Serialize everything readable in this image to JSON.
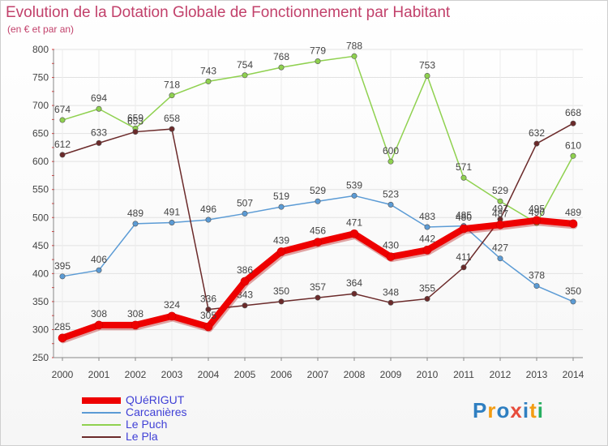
{
  "chart_data": {
    "type": "line",
    "title": "Evolution de la Dotation Globale de Fonctionnement par Habitant",
    "subtitle": "(en € et par an)",
    "xlabel": "",
    "ylabel": "",
    "ylim": [
      250,
      800
    ],
    "yticks": [
      250,
      300,
      350,
      400,
      450,
      500,
      550,
      600,
      650,
      700,
      750,
      800
    ],
    "categories": [
      "2000",
      "2001",
      "2002",
      "2003",
      "2004",
      "2005",
      "2006",
      "2007",
      "2008",
      "2009",
      "2010",
      "2011",
      "2012",
      "2013",
      "2014"
    ],
    "legend_position": "bottom-left",
    "series": [
      {
        "name": "QUéRIGUT",
        "color": "#ee0000",
        "emphasis": true,
        "values": [
          285,
          308,
          308,
          324,
          305,
          386,
          439,
          456,
          471,
          430,
          442,
          480,
          487,
          495,
          489
        ]
      },
      {
        "name": "Carcanières",
        "color": "#5b9bd5",
        "values": [
          395,
          406,
          489,
          491,
          496,
          507,
          519,
          529,
          539,
          523,
          483,
          485,
          427,
          378,
          350
        ]
      },
      {
        "name": "Le Puch",
        "color": "#8fd14f",
        "values": [
          674,
          694,
          659,
          718,
          743,
          754,
          768,
          779,
          788,
          600,
          753,
          571,
          529,
          490,
          610
        ]
      },
      {
        "name": "Le Pla",
        "color": "#6b2a2a",
        "values": [
          612,
          633,
          653,
          658,
          336,
          343,
          350,
          357,
          364,
          348,
          355,
          411,
          497,
          632,
          668
        ]
      }
    ]
  },
  "logo": {
    "letters": [
      "P",
      "r",
      "o",
      "x",
      "i",
      "t",
      "i"
    ],
    "colors": [
      "#2f7fc1",
      "#f39c12",
      "#2f7fc1",
      "#e74c3c",
      "#2f7fc1",
      "#f39c12",
      "#27ae60"
    ]
  }
}
